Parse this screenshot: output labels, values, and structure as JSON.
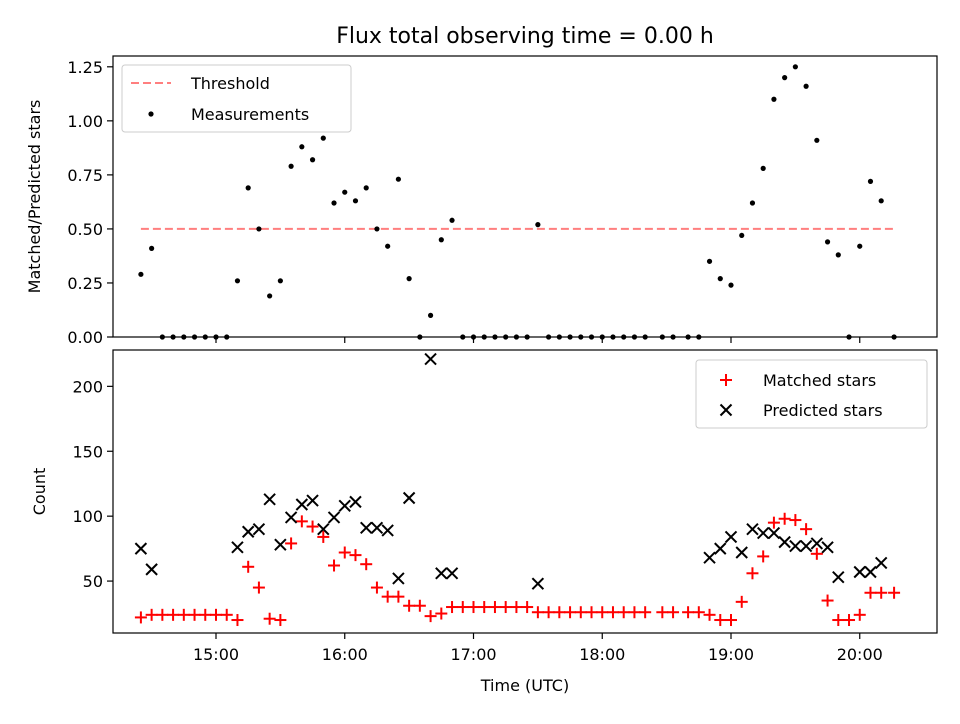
{
  "title": "Flux total observing time = 0.00 h",
  "colors": {
    "threshold": "#ff7f7f",
    "measurement": "#000000",
    "matched": "#ff0000",
    "predicted": "#000000"
  },
  "chart_data": [
    {
      "type": "scatter",
      "title": "Flux total observing time = 0.00 h",
      "ylabel": "Matched/Predicted stars",
      "xlim": [
        "14:12",
        "20:36"
      ],
      "ylim": [
        0,
        1.3
      ],
      "yticks": [
        "0.00",
        "0.25",
        "0.50",
        "0.75",
        "1.00",
        "1.25"
      ],
      "ytick_values": [
        0,
        0.25,
        0.5,
        0.75,
        1.0,
        1.25
      ],
      "legend_position": "top-left",
      "threshold": {
        "name": "Threshold",
        "y": 0.5,
        "x_start": "14:25",
        "x_end": "20:16",
        "style": "dashed"
      },
      "series": [
        {
          "name": "Measurements",
          "points": [
            [
              "14:25",
              0.29
            ],
            [
              "14:30",
              0.41
            ],
            [
              "14:35",
              0
            ],
            [
              "14:40",
              0
            ],
            [
              "14:45",
              0
            ],
            [
              "14:50",
              0
            ],
            [
              "14:55",
              0
            ],
            [
              "15:00",
              0
            ],
            [
              "15:05",
              0
            ],
            [
              "15:10",
              0.26
            ],
            [
              "15:15",
              0.69
            ],
            [
              "15:20",
              0.5
            ],
            [
              "15:25",
              0.19
            ],
            [
              "15:30",
              0.26
            ],
            [
              "15:35",
              0.79
            ],
            [
              "15:40",
              0.88
            ],
            [
              "15:45",
              0.82
            ],
            [
              "15:50",
              0.92
            ],
            [
              "15:55",
              0.62
            ],
            [
              "16:00",
              0.67
            ],
            [
              "16:05",
              0.63
            ],
            [
              "16:10",
              0.69
            ],
            [
              "16:15",
              0.5
            ],
            [
              "16:20",
              0.42
            ],
            [
              "16:25",
              0.73
            ],
            [
              "16:30",
              0.27
            ],
            [
              "16:35",
              0
            ],
            [
              "16:40",
              0.1
            ],
            [
              "16:45",
              0.45
            ],
            [
              "16:50",
              0.54
            ],
            [
              "16:55",
              0
            ],
            [
              "17:00",
              0
            ],
            [
              "17:05",
              0
            ],
            [
              "17:10",
              0
            ],
            [
              "17:15",
              0
            ],
            [
              "17:20",
              0
            ],
            [
              "17:25",
              0
            ],
            [
              "17:30",
              0.52
            ],
            [
              "17:35",
              0
            ],
            [
              "17:40",
              0
            ],
            [
              "17:45",
              0
            ],
            [
              "17:50",
              0
            ],
            [
              "17:55",
              0
            ],
            [
              "18:00",
              0
            ],
            [
              "18:05",
              0
            ],
            [
              "18:10",
              0
            ],
            [
              "18:15",
              0
            ],
            [
              "18:20",
              0
            ],
            [
              "18:28",
              0
            ],
            [
              "18:33",
              0
            ],
            [
              "18:40",
              0
            ],
            [
              "18:45",
              0
            ],
            [
              "18:50",
              0.35
            ],
            [
              "18:55",
              0.27
            ],
            [
              "19:00",
              0.24
            ],
            [
              "19:05",
              0.47
            ],
            [
              "19:10",
              0.62
            ],
            [
              "19:15",
              0.78
            ],
            [
              "19:20",
              1.1
            ],
            [
              "19:25",
              1.2
            ],
            [
              "19:30",
              1.25
            ],
            [
              "19:35",
              1.16
            ],
            [
              "19:40",
              0.91
            ],
            [
              "19:45",
              0.44
            ],
            [
              "19:50",
              0.38
            ],
            [
              "19:55",
              0
            ],
            [
              "20:00",
              0.42
            ],
            [
              "20:05",
              0.72
            ],
            [
              "20:10",
              0.63
            ],
            [
              "20:16",
              0
            ]
          ]
        }
      ]
    },
    {
      "type": "scatter",
      "xlabel": "Time (UTC)",
      "ylabel": "Count",
      "xlim": [
        "14:12",
        "20:36"
      ],
      "ylim": [
        10,
        228
      ],
      "xticks": [
        "15:00",
        "16:00",
        "17:00",
        "18:00",
        "19:00",
        "20:00"
      ],
      "yticks": [
        "50",
        "100",
        "150",
        "200"
      ],
      "ytick_values": [
        50,
        100,
        150,
        200
      ],
      "legend_position": "top-right",
      "series": [
        {
          "name": "Matched stars",
          "points": [
            [
              "14:25",
              22
            ],
            [
              "14:30",
              24
            ],
            [
              "14:35",
              24
            ],
            [
              "14:40",
              24
            ],
            [
              "14:45",
              24
            ],
            [
              "14:50",
              24
            ],
            [
              "14:55",
              24
            ],
            [
              "15:00",
              24
            ],
            [
              "15:05",
              24
            ],
            [
              "15:10",
              20
            ],
            [
              "15:15",
              61
            ],
            [
              "15:20",
              45
            ],
            [
              "15:25",
              21
            ],
            [
              "15:30",
              20
            ],
            [
              "15:35",
              79
            ],
            [
              "15:40",
              96
            ],
            [
              "15:45",
              92
            ],
            [
              "15:50",
              84
            ],
            [
              "15:55",
              62
            ],
            [
              "16:00",
              72
            ],
            [
              "16:05",
              70
            ],
            [
              "16:10",
              63
            ],
            [
              "16:15",
              45
            ],
            [
              "16:20",
              38
            ],
            [
              "16:25",
              38
            ],
            [
              "16:30",
              31
            ],
            [
              "16:35",
              31
            ],
            [
              "16:40",
              23
            ],
            [
              "16:45",
              25
            ],
            [
              "16:50",
              30
            ],
            [
              "16:55",
              30
            ],
            [
              "17:00",
              30
            ],
            [
              "17:05",
              30
            ],
            [
              "17:10",
              30
            ],
            [
              "17:15",
              30
            ],
            [
              "17:20",
              30
            ],
            [
              "17:25",
              30
            ],
            [
              "17:30",
              26
            ],
            [
              "17:35",
              26
            ],
            [
              "17:40",
              26
            ],
            [
              "17:45",
              26
            ],
            [
              "17:50",
              26
            ],
            [
              "17:55",
              26
            ],
            [
              "18:00",
              26
            ],
            [
              "18:05",
              26
            ],
            [
              "18:10",
              26
            ],
            [
              "18:15",
              26
            ],
            [
              "18:20",
              26
            ],
            [
              "18:28",
              26
            ],
            [
              "18:33",
              26
            ],
            [
              "18:40",
              26
            ],
            [
              "18:45",
              26
            ],
            [
              "18:50",
              24
            ],
            [
              "18:55",
              20
            ],
            [
              "19:00",
              20
            ],
            [
              "19:05",
              34
            ],
            [
              "19:10",
              56
            ],
            [
              "19:15",
              69
            ],
            [
              "19:20",
              95
            ],
            [
              "19:25",
              98
            ],
            [
              "19:30",
              97
            ],
            [
              "19:35",
              90
            ],
            [
              "19:40",
              71
            ],
            [
              "19:45",
              35
            ],
            [
              "19:50",
              20
            ],
            [
              "19:55",
              20
            ],
            [
              "20:00",
              24
            ],
            [
              "20:05",
              41
            ],
            [
              "20:10",
              41
            ],
            [
              "20:16",
              41
            ]
          ]
        },
        {
          "name": "Predicted stars",
          "points": [
            [
              "14:25",
              75
            ],
            [
              "14:30",
              59
            ],
            [
              "15:10",
              76
            ],
            [
              "15:15",
              88
            ],
            [
              "15:20",
              90
            ],
            [
              "15:25",
              113
            ],
            [
              "15:30",
              78
            ],
            [
              "15:35",
              99
            ],
            [
              "15:40",
              109
            ],
            [
              "15:45",
              112
            ],
            [
              "15:50",
              90
            ],
            [
              "15:55",
              99
            ],
            [
              "16:00",
              108
            ],
            [
              "16:05",
              111
            ],
            [
              "16:10",
              91
            ],
            [
              "16:15",
              91
            ],
            [
              "16:20",
              89
            ],
            [
              "16:25",
              52
            ],
            [
              "16:30",
              114
            ],
            [
              "16:40",
              221
            ],
            [
              "16:45",
              56
            ],
            [
              "16:50",
              56
            ],
            [
              "17:30",
              48
            ],
            [
              "18:50",
              68
            ],
            [
              "18:55",
              75
            ],
            [
              "19:00",
              84
            ],
            [
              "19:05",
              72
            ],
            [
              "19:10",
              90
            ],
            [
              "19:15",
              87
            ],
            [
              "19:20",
              87
            ],
            [
              "19:25",
              80
            ],
            [
              "19:30",
              77
            ],
            [
              "19:35",
              77
            ],
            [
              "19:40",
              79
            ],
            [
              "19:45",
              76
            ],
            [
              "19:50",
              53
            ],
            [
              "20:00",
              57
            ],
            [
              "20:05",
              57
            ],
            [
              "20:10",
              64
            ]
          ]
        }
      ]
    }
  ]
}
